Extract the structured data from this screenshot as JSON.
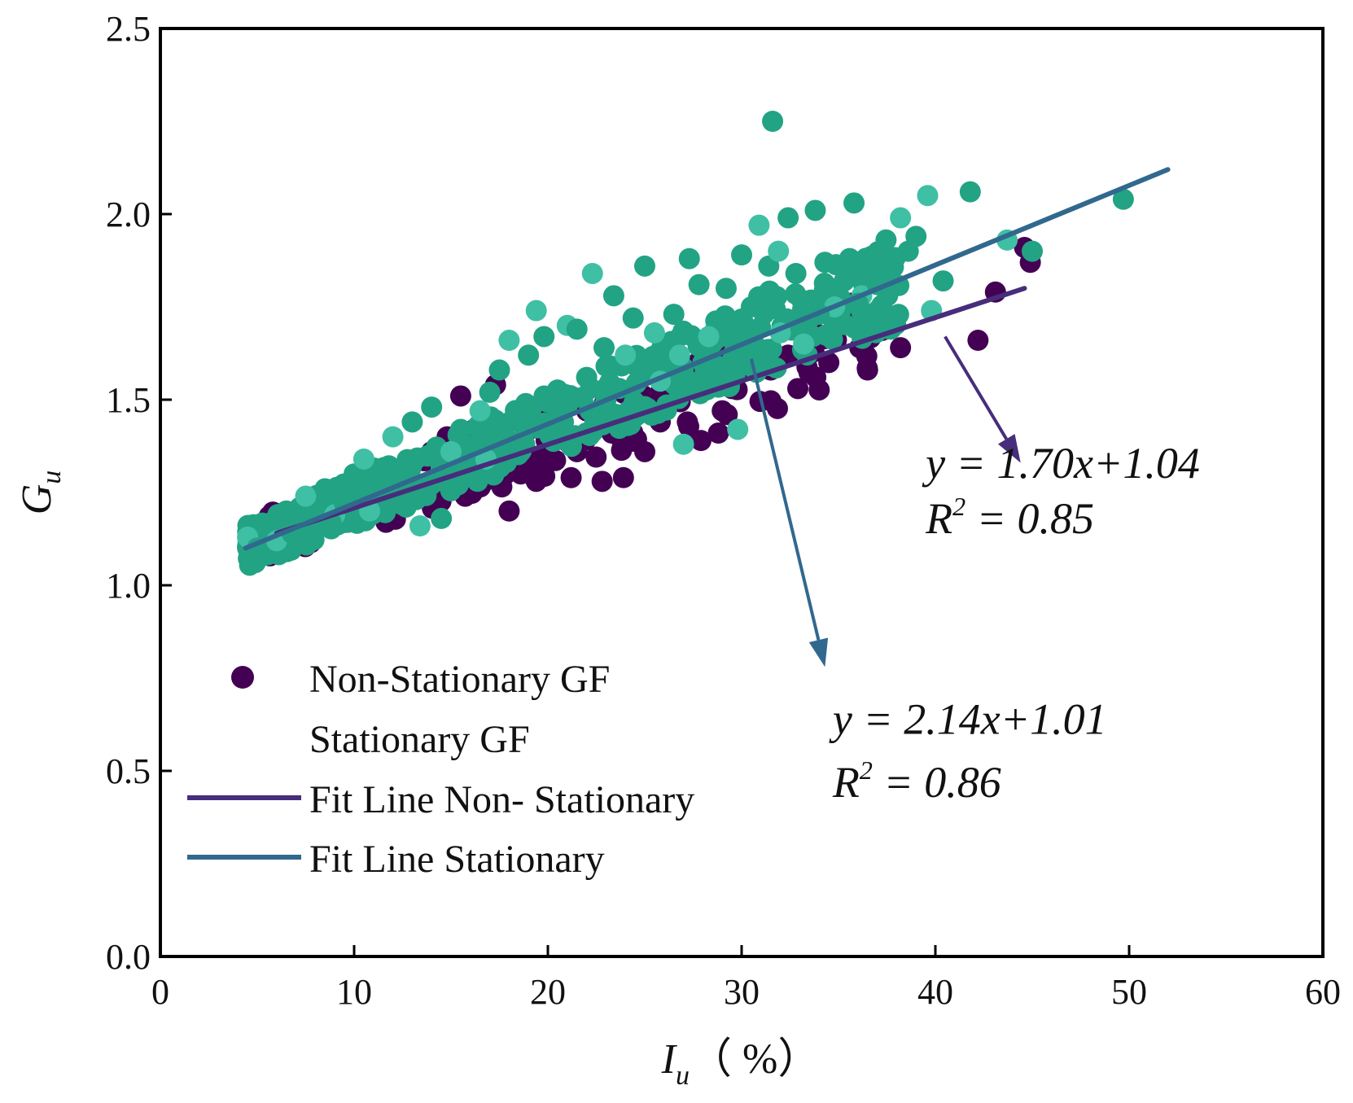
{
  "chart_data": {
    "type": "scatter",
    "title": "",
    "xlabel": {
      "main": "I",
      "sub": "u",
      "suffix": "（ %）"
    },
    "ylabel": {
      "main": "G",
      "sub": "u"
    },
    "xlim": [
      0,
      60
    ],
    "ylim": [
      0,
      2.5
    ],
    "xticks": [
      "0",
      "10",
      "20",
      "30",
      "40",
      "50",
      "60"
    ],
    "yticks": [
      "0.0",
      "0.5",
      "1.0",
      "1.5",
      "2.0",
      "2.5"
    ],
    "xtick_values": [
      0,
      10,
      20,
      30,
      40,
      50,
      60
    ],
    "ytick_values": [
      0,
      0.5,
      1.0,
      1.5,
      2.0,
      2.5
    ],
    "legend_position": "lower-left",
    "colors": {
      "non_stationary_points": "#440154",
      "stationary_points": "#22a384",
      "stationary_points_light": "#3fbfa4",
      "fit_non_stationary": "#472d7b",
      "fit_stationary": "#31688e",
      "arrow_non_stationary": "#472d7b",
      "arrow_stationary": "#31688e",
      "axis": "#000000"
    },
    "series": [
      {
        "name": "Non-Stationary GF",
        "kind": "scatter",
        "points": [
          [
            6.2,
            1.16
          ],
          [
            7.5,
            1.19
          ],
          [
            8.8,
            1.22
          ],
          [
            10.2,
            1.25
          ],
          [
            11.5,
            1.27
          ],
          [
            12.4,
            1.3
          ],
          [
            13.1,
            1.33
          ],
          [
            14.0,
            1.36
          ],
          [
            14.8,
            1.4
          ],
          [
            15.5,
            1.51
          ],
          [
            16.2,
            1.42
          ],
          [
            17.3,
            1.54
          ],
          [
            18.0,
            1.2
          ],
          [
            18.6,
            1.3
          ],
          [
            19.4,
            1.28
          ],
          [
            20.3,
            1.45
          ],
          [
            21.2,
            1.29
          ],
          [
            22.0,
            1.47
          ],
          [
            22.8,
            1.28
          ],
          [
            23.9,
            1.29
          ],
          [
            24.6,
            1.52
          ],
          [
            25.0,
            1.36
          ],
          [
            26.3,
            1.5
          ],
          [
            27.2,
            1.44
          ],
          [
            27.9,
            1.39
          ],
          [
            28.8,
            1.41
          ],
          [
            29.5,
            1.53
          ],
          [
            30.6,
            1.6
          ],
          [
            31.5,
            1.58
          ],
          [
            32.4,
            1.62
          ],
          [
            32.9,
            1.53
          ],
          [
            33.6,
            1.7
          ],
          [
            34.5,
            1.6
          ],
          [
            35.7,
            1.76
          ],
          [
            36.1,
            1.64
          ],
          [
            36.5,
            1.58
          ],
          [
            37.5,
            1.7
          ],
          [
            38.2,
            1.64
          ],
          [
            42.2,
            1.66
          ],
          [
            43.1,
            1.79
          ],
          [
            44.6,
            1.91
          ],
          [
            44.9,
            1.87
          ],
          [
            21.5,
            1.36
          ],
          [
            23.3,
            1.41
          ],
          [
            25.8,
            1.44
          ],
          [
            29.0,
            1.47
          ]
        ]
      },
      {
        "name": "Stationary GF",
        "kind": "scatter",
        "points": [
          [
            4.5,
            1.13
          ],
          [
            5.0,
            1.1
          ],
          [
            5.5,
            1.16
          ],
          [
            6.0,
            1.12
          ],
          [
            6.5,
            1.2
          ],
          [
            7.0,
            1.13
          ],
          [
            7.5,
            1.24
          ],
          [
            8.0,
            1.16
          ],
          [
            8.5,
            1.26
          ],
          [
            9.0,
            1.19
          ],
          [
            9.5,
            1.22
          ],
          [
            10.0,
            1.3
          ],
          [
            10.5,
            1.34
          ],
          [
            11.0,
            1.26
          ],
          [
            11.5,
            1.21
          ],
          [
            12.0,
            1.4
          ],
          [
            12.5,
            1.3
          ],
          [
            13.0,
            1.44
          ],
          [
            13.4,
            1.16
          ],
          [
            14.0,
            1.48
          ],
          [
            14.5,
            1.18
          ],
          [
            15.0,
            1.36
          ],
          [
            15.5,
            1.42
          ],
          [
            16.0,
            1.33
          ],
          [
            16.5,
            1.47
          ],
          [
            17.0,
            1.52
          ],
          [
            17.5,
            1.58
          ],
          [
            18.0,
            1.66
          ],
          [
            18.5,
            1.44
          ],
          [
            19.0,
            1.62
          ],
          [
            19.4,
            1.74
          ],
          [
            19.8,
            1.67
          ],
          [
            20.3,
            1.49
          ],
          [
            21.0,
            1.7
          ],
          [
            21.5,
            1.69
          ],
          [
            22.0,
            1.56
          ],
          [
            22.3,
            1.84
          ],
          [
            22.9,
            1.64
          ],
          [
            23.4,
            1.78
          ],
          [
            24.0,
            1.62
          ],
          [
            24.4,
            1.72
          ],
          [
            25.0,
            1.86
          ],
          [
            25.5,
            1.68
          ],
          [
            26.0,
            1.58
          ],
          [
            26.5,
            1.73
          ],
          [
            27.0,
            1.38
          ],
          [
            27.3,
            1.88
          ],
          [
            27.8,
            1.81
          ],
          [
            28.3,
            1.67
          ],
          [
            28.8,
            1.59
          ],
          [
            29.2,
            1.8
          ],
          [
            29.8,
            1.42
          ],
          [
            30.0,
            1.89
          ],
          [
            30.5,
            1.75
          ],
          [
            30.9,
            1.97
          ],
          [
            31.4,
            1.86
          ],
          [
            31.6,
            2.25
          ],
          [
            31.9,
            1.9
          ],
          [
            32.4,
            1.99
          ],
          [
            32.8,
            1.84
          ],
          [
            33.2,
            1.65
          ],
          [
            33.8,
            2.01
          ],
          [
            34.3,
            1.87
          ],
          [
            34.8,
            1.75
          ],
          [
            35.3,
            1.82
          ],
          [
            35.8,
            2.03
          ],
          [
            36.2,
            1.78
          ],
          [
            37.0,
            1.81
          ],
          [
            37.7,
            1.69
          ],
          [
            38.2,
            1.99
          ],
          [
            38.6,
            1.9
          ],
          [
            39.0,
            1.94
          ],
          [
            39.6,
            2.05
          ],
          [
            40.4,
            1.82
          ],
          [
            41.8,
            2.06
          ],
          [
            43.7,
            1.93
          ],
          [
            45.0,
            1.9
          ],
          [
            49.7,
            2.04
          ],
          [
            39.8,
            1.74
          ],
          [
            36.6,
            1.72
          ],
          [
            23.0,
            1.5
          ],
          [
            25.8,
            1.55
          ],
          [
            28.0,
            1.6
          ],
          [
            30.2,
            1.62
          ],
          [
            32.0,
            1.68
          ],
          [
            34.0,
            1.73
          ],
          [
            36.0,
            1.76
          ],
          [
            26.8,
            1.62
          ],
          [
            20.8,
            1.44
          ],
          [
            18.8,
            1.38
          ],
          [
            16.8,
            1.34
          ],
          [
            14.8,
            1.28
          ],
          [
            12.8,
            1.24
          ],
          [
            10.8,
            1.2
          ],
          [
            8.8,
            1.17
          ],
          [
            6.8,
            1.14
          ]
        ]
      },
      {
        "name": "Fit Line Non- Stationary",
        "kind": "line",
        "points": [
          [
            6.0,
            1.14
          ],
          [
            44.6,
            1.8
          ]
        ]
      },
      {
        "name": "Fit Line Stationary",
        "kind": "line",
        "points": [
          [
            4.4,
            1.1
          ],
          [
            52.0,
            2.12
          ]
        ]
      }
    ],
    "annotations": [
      {
        "id": "non-stationary",
        "equation": "y = 1.70x+1.04",
        "r2_label": "R",
        "r2_sup": "2",
        "r2_value": " = 0.85",
        "label_at": [
          39.5,
          1.29
        ],
        "r2_at": [
          39.5,
          1.14
        ],
        "arrow_from": [
          40.5,
          1.67
        ],
        "arrow_to": [
          44.4,
          1.33
        ]
      },
      {
        "id": "stationary",
        "equation": "y = 2.14x+1.01",
        "r2_label": "R",
        "r2_sup": "2",
        "r2_value": " = 0.86",
        "label_at": [
          34.7,
          0.6
        ],
        "r2_at": [
          34.7,
          0.43
        ],
        "arrow_from": [
          30.5,
          1.61
        ],
        "arrow_to": [
          34.3,
          0.78
        ]
      }
    ]
  }
}
